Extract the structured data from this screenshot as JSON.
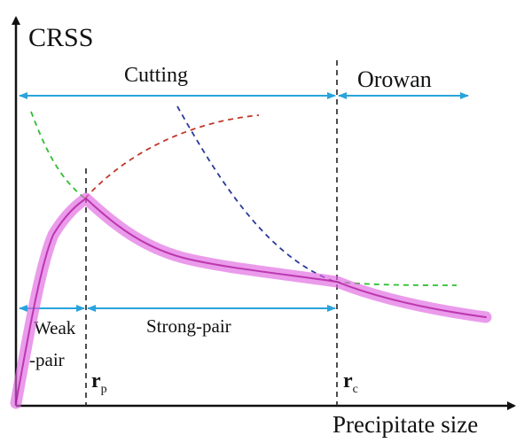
{
  "title": "",
  "axes": {
    "y_label": "CRSS",
    "x_label": "Precipitate size"
  },
  "regions": {
    "cutting": "Cutting",
    "orowan": "Orowan",
    "weak_pair_line1": "Weak",
    "weak_pair_line2": "-pair",
    "strong_pair": "Strong-pair"
  },
  "markers": {
    "rp": {
      "main": "r",
      "sub": "p"
    },
    "rc": {
      "main": "r",
      "sub": "c"
    }
  },
  "colors": {
    "axis": "#111111",
    "arrow": "#29a3dc",
    "envelope": "#e066e0",
    "envelope_core": "#b01ea0",
    "weak_dashed": "#2fbf2f",
    "strong_dashed": "#c0392b",
    "orowan_dashed": "#2b3a9a",
    "vline": "#222222"
  }
}
